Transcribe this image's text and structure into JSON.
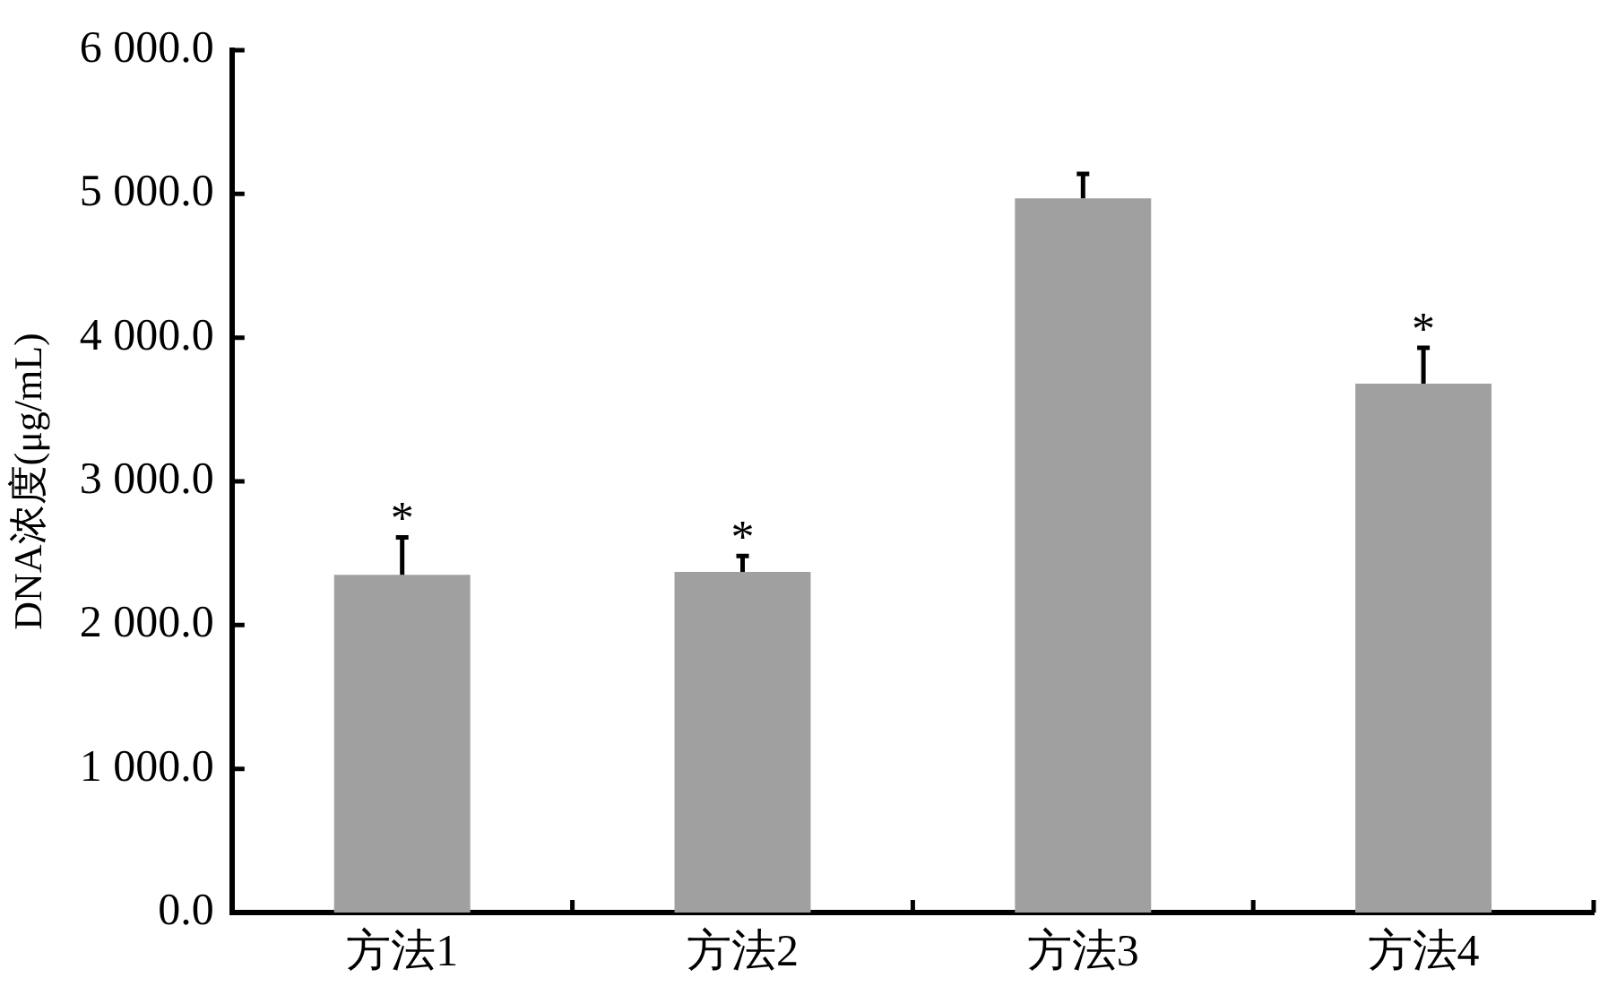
{
  "chart_data": {
    "type": "bar",
    "ylabel": "DNA浓度(μg/mL)",
    "categories": [
      "方法1",
      "方法2",
      "方法3",
      "方法4"
    ],
    "values": [
      2350,
      2370,
      4970,
      3680
    ],
    "errors": [
      260,
      110,
      170,
      250
    ],
    "color": "#a0a0a0",
    "ylim": [
      0,
      6000
    ],
    "yticks": [
      {
        "value": 0,
        "label": "0.0"
      },
      {
        "value": 1000,
        "label": "1 000.0"
      },
      {
        "value": 2000,
        "label": "2 000.0"
      },
      {
        "value": 3000,
        "label": "3 000.0"
      },
      {
        "value": 4000,
        "label": "4 000.0"
      },
      {
        "value": 5000,
        "label": "5 000.0"
      },
      {
        "value": 6000,
        "label": "6 000.0"
      }
    ],
    "annotations": [
      {
        "text": "*",
        "x": "方法1",
        "y": 2610
      },
      {
        "text": "*",
        "x": "方法2",
        "y": 2480
      },
      {
        "text": "*",
        "x": "方法4",
        "y": 3930
      }
    ],
    "grid": false,
    "legend": false
  }
}
